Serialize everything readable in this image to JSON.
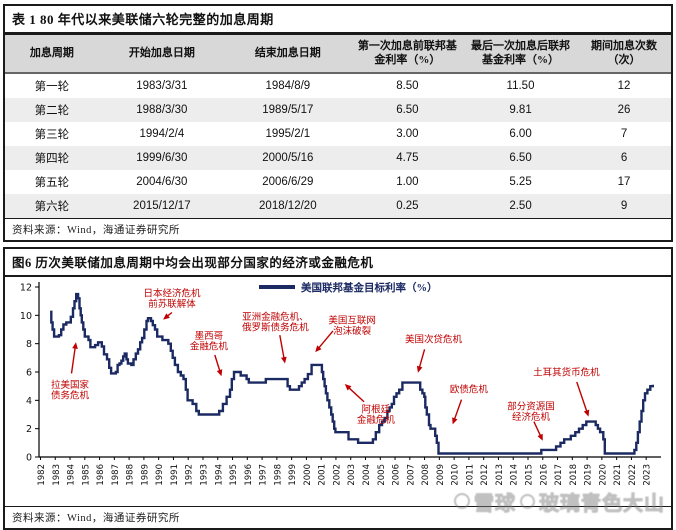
{
  "table": {
    "title": "表 1  80 年代以来美联储六轮完整的加息周期",
    "columns": [
      "加息周期",
      "开始加息日期",
      "结束加息日期",
      "第一次加息前联邦基金利率（%）",
      "最后一次加息后联邦基金利率（%）",
      "期间加息次数（次）"
    ],
    "rows": [
      [
        "第一轮",
        "1983/3/31",
        "1984/8/9",
        "8.50",
        "11.50",
        "12"
      ],
      [
        "第二轮",
        "1988/3/30",
        "1989/5/17",
        "6.50",
        "9.81",
        "26"
      ],
      [
        "第三轮",
        "1994/2/4",
        "1995/2/1",
        "3.00",
        "6.00",
        "7"
      ],
      [
        "第四轮",
        "1999/6/30",
        "2000/5/16",
        "4.75",
        "6.50",
        "6"
      ],
      [
        "第五轮",
        "2004/6/30",
        "2006/6/29",
        "1.00",
        "5.25",
        "17"
      ],
      [
        "第六轮",
        "2015/12/17",
        "2018/12/20",
        "0.25",
        "2.50",
        "9"
      ]
    ],
    "source": "资料来源：Wind，海通证券研究所"
  },
  "figure": {
    "source": "资料来源：Wind，海通证券研究所"
  },
  "watermark": {
    "brand": "雪球",
    "user": "玻璃青色大山"
  },
  "chart_data": {
    "type": "line",
    "title": "图6  历次美联储加息周期中均会出现部分国家的经济或金融危机",
    "legend": "美国联邦基金目标利率（%）",
    "line_color": "#1b2a63",
    "annotation_color": "#c00000",
    "ylim": [
      0,
      12
    ],
    "yticks": [
      0,
      2,
      4,
      6,
      8,
      10,
      12
    ],
    "xlim": [
      1981.9,
      2023.8
    ],
    "xticks": [
      1982,
      1983,
      1984,
      1985,
      1986,
      1987,
      1988,
      1989,
      1990,
      1991,
      1992,
      1993,
      1994,
      1995,
      1996,
      1997,
      1998,
      1999,
      2000,
      2001,
      2002,
      2003,
      2004,
      2005,
      2006,
      2007,
      2008,
      2009,
      2010,
      2011,
      2012,
      2013,
      2014,
      2015,
      2016,
      2017,
      2018,
      2019,
      2020,
      2021,
      2022,
      2023
    ],
    "grid": false,
    "legend_position": "top-center",
    "series": [
      {
        "name": "美国联邦基金目标利率（%）",
        "points": [
          [
            1982.65,
            10.25
          ],
          [
            1982.73,
            9.5
          ],
          [
            1982.82,
            9.0
          ],
          [
            1982.92,
            8.5
          ],
          [
            1983.25,
            8.6
          ],
          [
            1983.4,
            9.0
          ],
          [
            1983.55,
            9.35
          ],
          [
            1983.75,
            9.5
          ],
          [
            1984.05,
            9.9
          ],
          [
            1984.2,
            10.5
          ],
          [
            1984.3,
            11.0
          ],
          [
            1984.42,
            11.5
          ],
          [
            1984.55,
            11.2
          ],
          [
            1984.64,
            10.5
          ],
          [
            1984.72,
            10.0
          ],
          [
            1984.8,
            9.5
          ],
          [
            1984.9,
            9.0
          ],
          [
            1985.0,
            8.5
          ],
          [
            1985.25,
            8.25
          ],
          [
            1985.38,
            7.75
          ],
          [
            1985.7,
            7.9
          ],
          [
            1985.9,
            8.1
          ],
          [
            1986.15,
            7.8
          ],
          [
            1986.3,
            7.25
          ],
          [
            1986.5,
            6.9
          ],
          [
            1986.65,
            6.3
          ],
          [
            1986.78,
            5.9
          ],
          [
            1987.1,
            6.0
          ],
          [
            1987.22,
            6.5
          ],
          [
            1987.35,
            6.6
          ],
          [
            1987.48,
            6.8
          ],
          [
            1987.6,
            7.1
          ],
          [
            1987.7,
            7.3
          ],
          [
            1987.82,
            6.9
          ],
          [
            1987.92,
            6.6
          ],
          [
            1988.15,
            6.5
          ],
          [
            1988.3,
            6.9
          ],
          [
            1988.45,
            7.3
          ],
          [
            1988.6,
            7.6
          ],
          [
            1988.75,
            8.1
          ],
          [
            1988.88,
            8.4
          ],
          [
            1989.03,
            9.0
          ],
          [
            1989.18,
            9.6
          ],
          [
            1989.28,
            9.8
          ],
          [
            1989.48,
            9.6
          ],
          [
            1989.6,
            9.3
          ],
          [
            1989.75,
            9.0
          ],
          [
            1989.9,
            8.5
          ],
          [
            1990.25,
            8.25
          ],
          [
            1990.65,
            8.0
          ],
          [
            1990.82,
            7.5
          ],
          [
            1990.95,
            7.0
          ],
          [
            1991.1,
            6.5
          ],
          [
            1991.3,
            6.0
          ],
          [
            1991.5,
            5.75
          ],
          [
            1991.68,
            5.5
          ],
          [
            1991.84,
            4.75
          ],
          [
            1991.96,
            4.0
          ],
          [
            1992.3,
            3.75
          ],
          [
            1992.55,
            3.25
          ],
          [
            1992.72,
            3.0
          ],
          [
            1994.1,
            3.25
          ],
          [
            1994.35,
            3.75
          ],
          [
            1994.6,
            4.25
          ],
          [
            1994.83,
            4.75
          ],
          [
            1994.95,
            5.5
          ],
          [
            1995.1,
            6.0
          ],
          [
            1995.55,
            5.75
          ],
          [
            1995.95,
            5.5
          ],
          [
            1996.1,
            5.25
          ],
          [
            1997.25,
            5.5
          ],
          [
            1998.73,
            5.0
          ],
          [
            1998.88,
            4.75
          ],
          [
            1999.5,
            5.0
          ],
          [
            1999.68,
            5.25
          ],
          [
            1999.88,
            5.5
          ],
          [
            2000.1,
            5.85
          ],
          [
            2000.35,
            6.5
          ],
          [
            2001.05,
            6.0
          ],
          [
            2001.14,
            5.5
          ],
          [
            2001.23,
            5.0
          ],
          [
            2001.32,
            4.5
          ],
          [
            2001.42,
            4.0
          ],
          [
            2001.55,
            3.5
          ],
          [
            2001.68,
            3.0
          ],
          [
            2001.78,
            2.5
          ],
          [
            2001.88,
            2.0
          ],
          [
            2001.96,
            1.75
          ],
          [
            2002.85,
            1.25
          ],
          [
            2003.5,
            1.0
          ],
          [
            2004.5,
            1.25
          ],
          [
            2004.7,
            1.75
          ],
          [
            2004.93,
            2.25
          ],
          [
            2005.12,
            2.5
          ],
          [
            2005.3,
            2.75
          ],
          [
            2005.48,
            3.25
          ],
          [
            2005.63,
            3.5
          ],
          [
            2005.78,
            3.75
          ],
          [
            2005.93,
            4.25
          ],
          [
            2006.1,
            4.5
          ],
          [
            2006.28,
            4.75
          ],
          [
            2006.5,
            5.25
          ],
          [
            2007.7,
            4.75
          ],
          [
            2007.85,
            4.5
          ],
          [
            2007.98,
            4.25
          ],
          [
            2008.05,
            3.5
          ],
          [
            2008.15,
            3.0
          ],
          [
            2008.3,
            2.25
          ],
          [
            2008.4,
            2.0
          ],
          [
            2008.72,
            1.5
          ],
          [
            2008.83,
            1.0
          ],
          [
            2008.94,
            0.25
          ],
          [
            2015.9,
            0.5
          ],
          [
            2016.9,
            0.75
          ],
          [
            2017.2,
            1.0
          ],
          [
            2017.45,
            1.25
          ],
          [
            2017.9,
            1.5
          ],
          [
            2018.2,
            1.75
          ],
          [
            2018.45,
            2.0
          ],
          [
            2018.7,
            2.25
          ],
          [
            2018.95,
            2.5
          ],
          [
            2019.58,
            2.25
          ],
          [
            2019.73,
            2.0
          ],
          [
            2019.88,
            1.75
          ],
          [
            2020.1,
            1.25
          ],
          [
            2020.2,
            0.25
          ],
          [
            2022.2,
            0.5
          ],
          [
            2022.33,
            1.0
          ],
          [
            2022.44,
            1.75
          ],
          [
            2022.56,
            2.5
          ],
          [
            2022.68,
            3.25
          ],
          [
            2022.8,
            4.0
          ],
          [
            2022.92,
            4.5
          ],
          [
            2023.08,
            4.75
          ],
          [
            2023.28,
            5.0
          ],
          [
            2023.45,
            5.1
          ]
        ]
      }
    ],
    "annotations": [
      {
        "lines": [
          "拉美国家",
          "债务危机"
        ],
        "x": 1984.0,
        "y": 5.1,
        "arrow": [
          1984.1,
          5.9,
          1984.4,
          8.1
        ]
      },
      {
        "lines": [
          "日本经济危机",
          "前苏联解体"
        ],
        "x": 1990.9,
        "y": 11.55,
        "arrow": [
          1990.9,
          10.2,
          1990.3,
          9.7
        ]
      },
      {
        "lines": [
          "墨西哥",
          "金融危机"
        ],
        "x": 1993.4,
        "y": 8.55,
        "arrow": [
          1993.8,
          7.2,
          1994.25,
          5.7
        ]
      },
      {
        "lines": [
          "亚洲金融危机、",
          "俄罗斯债务危机"
        ],
        "x": 1997.9,
        "y": 9.9,
        "arrow": [
          1998.2,
          8.6,
          1998.55,
          6.6
        ]
      },
      {
        "lines": [
          "美国互联网",
          "泡沫破裂"
        ],
        "x": 2003.1,
        "y": 9.65,
        "arrow": [
          2001.8,
          8.9,
          2000.6,
          7.4
        ]
      },
      {
        "lines": [
          "阿根廷",
          "金融危机"
        ],
        "x": 2004.7,
        "y": 3.35,
        "arrow": [
          2003.9,
          3.9,
          2002.6,
          5.15
        ]
      },
      {
        "lines": [
          "美国次贷危机"
        ],
        "x": 2008.6,
        "y": 8.3,
        "arrow": [
          2008.0,
          7.6,
          2007.55,
          5.95
        ]
      },
      {
        "lines": [
          "欧债危机"
        ],
        "x": 2011.0,
        "y": 4.75,
        "arrow": [
          2010.5,
          4.05,
          2009.9,
          2.3
        ]
      },
      {
        "lines": [
          "部分资源国",
          "经济危机"
        ],
        "x": 2015.2,
        "y": 3.55,
        "arrow": [
          2015.4,
          2.5,
          2016.0,
          1.15
        ]
      },
      {
        "lines": [
          "土耳其货币危机"
        ],
        "x": 2017.6,
        "y": 5.95,
        "arrow": [
          2018.3,
          5.3,
          2019.1,
          2.85
        ]
      }
    ]
  }
}
